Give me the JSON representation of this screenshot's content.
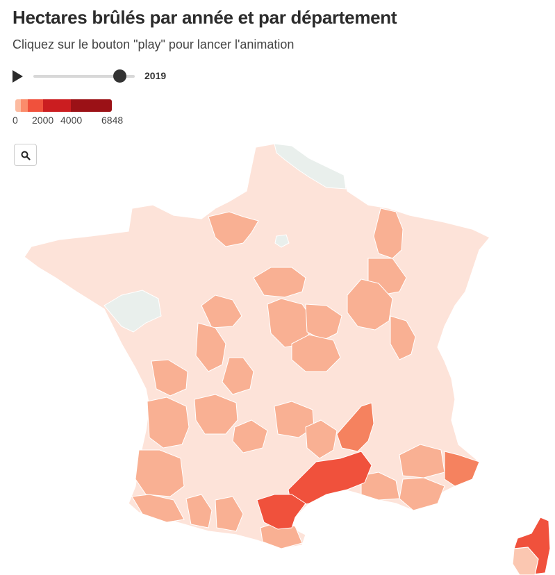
{
  "header": {
    "title": "Hectares brûlés par année et par département",
    "subtitle": "Cliquez sur le bouton \"play\" pour lancer l'animation"
  },
  "player": {
    "play_icon": "play-icon",
    "year": "2019"
  },
  "legend": {
    "labels": [
      "0",
      "2000",
      "4000",
      "6848"
    ],
    "colors": [
      "#fcbba1",
      "#fb8c6b",
      "#f0513c",
      "#cb1d20",
      "#a50f15",
      "#8e0d13"
    ]
  },
  "toolbar": {
    "zoom_icon": "search-icon"
  },
  "map": {
    "colors": {
      "no_data": "#e9efec",
      "very_low": "#fde3d9",
      "low": "#fbc7b1",
      "low_mid": "#f9b093",
      "mid": "#f5825f",
      "high": "#f0513c"
    }
  }
}
